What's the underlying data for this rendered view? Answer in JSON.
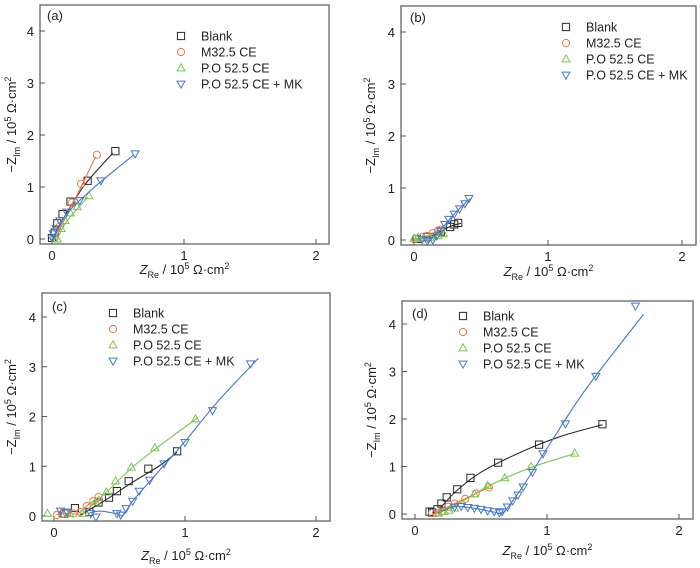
{
  "figure": {
    "y_axis_label": {
      "prefix": "−Z",
      "sub": "Im",
      "mid": " / 10",
      "sup": "5",
      "unit": " Ω·cm",
      "unit_sup": "2"
    },
    "x_axis_label": {
      "prefix": "Z",
      "sub": "Re",
      "mid": " / 10",
      "sup": "5",
      "unit": " Ω·cm",
      "unit_sup": "2"
    }
  },
  "chart_data": [
    {
      "type": "scatter",
      "panel": "(a)",
      "xlabel": "Z_Re / 10^5 Ω·cm^2",
      "ylabel": "-Z_Im / 10^5 Ω·cm^2",
      "xlim": [
        -0.05,
        2.05
      ],
      "ylim": [
        -0.05,
        4.4
      ],
      "xticks": [
        "0",
        "1",
        "2"
      ],
      "yticks": [
        "0",
        "1",
        "2",
        "3",
        "4"
      ],
      "legend_position": "top-right",
      "series": [
        {
          "name": "Blank",
          "marker": "square",
          "color": "#2b2b2b",
          "points": [
            [
              0.0,
              0.02
            ],
            [
              0.02,
              0.12
            ],
            [
              0.04,
              0.3
            ],
            [
              0.08,
              0.48
            ],
            [
              0.14,
              0.72
            ],
            [
              0.27,
              1.12
            ],
            [
              0.48,
              1.69
            ]
          ],
          "fit": [
            [
              0.0,
              -0.05
            ],
            [
              0.1,
              0.45
            ],
            [
              0.25,
              1.05
            ],
            [
              0.46,
              1.65
            ]
          ]
        },
        {
          "name": "M32.5 CE",
          "marker": "circle",
          "color": "#e8794f",
          "points": [
            [
              0.02,
              0.02
            ],
            [
              0.06,
              0.25
            ],
            [
              0.15,
              0.7
            ],
            [
              0.22,
              1.06
            ],
            [
              0.34,
              1.62
            ]
          ],
          "fit": [
            [
              0.02,
              -0.02
            ],
            [
              0.1,
              0.4
            ],
            [
              0.22,
              1.0
            ],
            [
              0.33,
              1.58
            ]
          ]
        },
        {
          "name": "P.O 52.5 CE",
          "marker": "triangle-up",
          "color": "#7ec35a",
          "points": [
            [
              0.04,
              0.0
            ],
            [
              0.07,
              0.2
            ],
            [
              0.1,
              0.35
            ],
            [
              0.14,
              0.5
            ],
            [
              0.19,
              0.62
            ],
            [
              0.28,
              0.83
            ]
          ],
          "fit": [
            [
              0.03,
              -0.05
            ],
            [
              0.1,
              0.3
            ],
            [
              0.2,
              0.6
            ],
            [
              0.27,
              0.8
            ]
          ]
        },
        {
          "name": "P.O 52.5 CE + MK",
          "marker": "triangle-down",
          "color": "#4a78c2",
          "points": [
            [
              0.0,
              0.02
            ],
            [
              0.01,
              0.1
            ],
            [
              0.03,
              0.2
            ],
            [
              0.06,
              0.35
            ],
            [
              0.11,
              0.52
            ],
            [
              0.21,
              0.74
            ],
            [
              0.37,
              1.12
            ],
            [
              0.63,
              1.64
            ]
          ],
          "fit": [
            [
              0.0,
              -0.02
            ],
            [
              0.1,
              0.45
            ],
            [
              0.3,
              0.95
            ],
            [
              0.62,
              1.62
            ]
          ]
        }
      ]
    },
    {
      "type": "scatter",
      "panel": "(b)",
      "xlabel": "Z_Re / 10^5 Ω·cm^2",
      "ylabel": "-Z_Im / 10^5 Ω·cm^2",
      "xlim": [
        -0.05,
        2.05
      ],
      "ylim": [
        -0.1,
        4.4
      ],
      "xticks": [
        "0",
        "1",
        "2"
      ],
      "yticks": [
        "0",
        "1",
        "2",
        "3",
        "4"
      ],
      "legend_position": "top-right",
      "series": [
        {
          "name": "Blank",
          "marker": "square",
          "color": "#2b2b2b",
          "points": [
            [
              0.02,
              0.02
            ],
            [
              0.1,
              0.06
            ],
            [
              0.2,
              0.16
            ],
            [
              0.27,
              0.25
            ],
            [
              0.3,
              0.3
            ],
            [
              0.33,
              0.33
            ]
          ],
          "fit": [
            [
              0.02,
              0.0
            ],
            [
              0.15,
              0.1
            ],
            [
              0.27,
              0.26
            ],
            [
              0.35,
              0.32
            ]
          ]
        },
        {
          "name": "M32.5 CE",
          "marker": "circle",
          "color": "#e8794f",
          "points": [
            [
              0.01,
              0.02
            ],
            [
              0.06,
              0.05
            ],
            [
              0.1,
              0.08
            ],
            [
              0.14,
              0.13
            ],
            [
              0.18,
              0.18
            ],
            [
              0.2,
              0.2
            ]
          ],
          "fit": [
            [
              0.01,
              0.0
            ],
            [
              0.1,
              0.08
            ],
            [
              0.2,
              0.2
            ]
          ]
        },
        {
          "name": "P.O 52.5 CE",
          "marker": "triangle-up",
          "color": "#7ec35a",
          "points": [
            [
              0.0,
              0.03
            ],
            [
              0.03,
              0.05
            ],
            [
              0.07,
              0.03
            ],
            [
              0.12,
              0.05
            ],
            [
              0.18,
              0.08
            ],
            [
              0.22,
              0.12
            ]
          ],
          "fit": [
            [
              0.0,
              0.03
            ],
            [
              0.1,
              0.03
            ],
            [
              0.22,
              0.12
            ]
          ]
        },
        {
          "name": "P.O 52.5 CE + MK",
          "marker": "triangle-down",
          "color": "#4a78c2",
          "points": [
            [
              0.06,
              0.01
            ],
            [
              0.1,
              -0.02
            ],
            [
              0.14,
              0.0
            ],
            [
              0.17,
              0.08
            ],
            [
              0.2,
              0.18
            ],
            [
              0.23,
              0.3
            ],
            [
              0.26,
              0.4
            ],
            [
              0.3,
              0.5
            ],
            [
              0.34,
              0.6
            ],
            [
              0.38,
              0.7
            ],
            [
              0.41,
              0.8
            ]
          ],
          "fit": [
            [
              0.1,
              -0.05
            ],
            [
              0.2,
              0.2
            ],
            [
              0.3,
              0.5
            ],
            [
              0.42,
              0.8
            ]
          ]
        }
      ]
    },
    {
      "type": "scatter",
      "panel": "(c)",
      "xlabel": "Z_Re / 10^5 Ω·cm^2",
      "ylabel": "-Z_Im / 10^5 Ω·cm^2",
      "xlim": [
        -0.1,
        2.1
      ],
      "ylim": [
        -0.1,
        4.4
      ],
      "xticks": [
        "0",
        "1",
        "2"
      ],
      "yticks": [
        "0",
        "1",
        "2",
        "3",
        "4"
      ],
      "legend_position": "top-left",
      "series": [
        {
          "name": "Blank",
          "marker": "square",
          "color": "#2b2b2b",
          "points": [
            [
              0.08,
              0.05
            ],
            [
              0.16,
              0.16
            ],
            [
              0.27,
              0.08
            ],
            [
              0.34,
              0.27
            ],
            [
              0.42,
              0.37
            ],
            [
              0.48,
              0.5
            ],
            [
              0.57,
              0.7
            ],
            [
              0.72,
              0.95
            ],
            [
              0.94,
              1.3
            ]
          ],
          "fit": [
            [
              0.2,
              0.02
            ],
            [
              0.4,
              0.33
            ],
            [
              0.6,
              0.68
            ],
            [
              0.8,
              1.0
            ],
            [
              0.94,
              1.28
            ]
          ]
        },
        {
          "name": "M32.5 CE",
          "marker": "circle",
          "color": "#e8794f",
          "points": [
            [
              0.02,
              0.02
            ],
            [
              0.06,
              0.04
            ],
            [
              0.1,
              0.06
            ],
            [
              0.15,
              0.05
            ],
            [
              0.2,
              0.08
            ],
            [
              0.25,
              0.2
            ],
            [
              0.3,
              0.3
            ],
            [
              0.34,
              0.38
            ]
          ],
          "fit": [
            [
              0.02,
              0.03
            ],
            [
              0.1,
              0.05
            ],
            [
              0.18,
              0.05
            ],
            [
              0.25,
              0.2
            ],
            [
              0.35,
              0.4
            ]
          ]
        },
        {
          "name": "P.O 52.5 CE",
          "marker": "triangle-up",
          "color": "#7ec35a",
          "points": [
            [
              -0.05,
              0.05
            ],
            [
              0.12,
              0.05
            ],
            [
              0.22,
              0.05
            ],
            [
              0.32,
              0.28
            ],
            [
              0.4,
              0.48
            ],
            [
              0.47,
              0.7
            ],
            [
              0.59,
              0.98
            ],
            [
              0.77,
              1.37
            ],
            [
              1.08,
              1.95
            ]
          ],
          "fit": [
            [
              0.25,
              0.12
            ],
            [
              0.4,
              0.48
            ],
            [
              0.6,
              0.98
            ],
            [
              0.8,
              1.4
            ],
            [
              1.1,
              1.98
            ]
          ]
        },
        {
          "name": "P.O 52.5 CE + MK",
          "marker": "triangle-down",
          "color": "#4a78c2",
          "points": [
            [
              0.05,
              0.1
            ],
            [
              0.1,
              0.08
            ],
            [
              0.28,
              0.05
            ],
            [
              0.32,
              -0.02
            ],
            [
              0.48,
              0.05
            ],
            [
              0.51,
              0.02
            ],
            [
              0.55,
              0.15
            ],
            [
              0.6,
              0.3
            ],
            [
              0.65,
              0.5
            ],
            [
              0.73,
              0.72
            ],
            [
              0.84,
              1.05
            ],
            [
              1.0,
              1.48
            ],
            [
              1.21,
              2.12
            ],
            [
              1.5,
              3.06
            ]
          ],
          "fit": [
            [
              0.26,
              0.05
            ],
            [
              0.35,
              0.1
            ],
            [
              0.47,
              0.05
            ],
            [
              0.53,
              0.02
            ],
            [
              0.6,
              0.3
            ],
            [
              0.8,
              0.9
            ],
            [
              1.0,
              1.5
            ],
            [
              1.25,
              2.3
            ],
            [
              1.56,
              3.17
            ]
          ]
        }
      ]
    },
    {
      "type": "scatter",
      "panel": "(d)",
      "xlabel": "Z_Re / 10^5 Ω·cm^2",
      "ylabel": "-Z_Im / 10^5 Ω·cm^2",
      "xlim": [
        -0.1,
        2.05
      ],
      "ylim": [
        -0.1,
        4.5
      ],
      "xticks": [
        "0",
        "1",
        "2"
      ],
      "yticks": [
        "0",
        "1",
        "2",
        "3",
        "4"
      ],
      "legend_position": "top-left",
      "series": [
        {
          "name": "Blank",
          "marker": "square",
          "color": "#2b2b2b",
          "points": [
            [
              0.11,
              0.05
            ],
            [
              0.13,
              0.03
            ],
            [
              0.17,
              0.1
            ],
            [
              0.2,
              0.22
            ],
            [
              0.24,
              0.35
            ],
            [
              0.32,
              0.52
            ],
            [
              0.42,
              0.76
            ],
            [
              0.63,
              1.08
            ],
            [
              0.94,
              1.46
            ],
            [
              1.42,
              1.89
            ]
          ],
          "fit": [
            [
              0.17,
              0.05
            ],
            [
              0.3,
              0.45
            ],
            [
              0.5,
              0.88
            ],
            [
              0.8,
              1.3
            ],
            [
              1.1,
              1.63
            ],
            [
              1.42,
              1.88
            ]
          ]
        },
        {
          "name": "M32.5 CE",
          "marker": "circle",
          "color": "#e8794f",
          "points": [
            [
              0.13,
              0.02
            ],
            [
              0.16,
              0.02
            ],
            [
              0.2,
              0.05
            ],
            [
              0.25,
              0.15
            ],
            [
              0.3,
              0.22
            ],
            [
              0.38,
              0.32
            ],
            [
              0.46,
              0.43
            ],
            [
              0.56,
              0.56
            ]
          ],
          "fit": [
            [
              0.14,
              0.0
            ],
            [
              0.25,
              0.15
            ],
            [
              0.4,
              0.35
            ],
            [
              0.56,
              0.56
            ]
          ]
        },
        {
          "name": "P.O 52.5 CE",
          "marker": "triangle-up",
          "color": "#7ec35a",
          "points": [
            [
              0.18,
              0.02
            ],
            [
              0.22,
              0.05
            ],
            [
              0.26,
              0.08
            ],
            [
              0.3,
              0.12
            ],
            [
              0.45,
              0.42
            ],
            [
              0.55,
              0.6
            ],
            [
              0.68,
              0.76
            ],
            [
              0.88,
              1.0
            ],
            [
              1.21,
              1.28
            ]
          ],
          "fit": [
            [
              0.2,
              0.05
            ],
            [
              0.35,
              0.25
            ],
            [
              0.55,
              0.58
            ],
            [
              0.88,
              0.98
            ],
            [
              1.21,
              1.27
            ]
          ]
        },
        {
          "name": "P.O 52.5 CE + MK",
          "marker": "triangle-down",
          "color": "#4a78c2",
          "points": [
            [
              0.3,
              0.15
            ],
            [
              0.35,
              0.16
            ],
            [
              0.4,
              0.14
            ],
            [
              0.45,
              0.12
            ],
            [
              0.5,
              0.1
            ],
            [
              0.55,
              0.07
            ],
            [
              0.6,
              0.05
            ],
            [
              0.64,
              0.03
            ],
            [
              0.66,
              0.05
            ],
            [
              0.7,
              0.15
            ],
            [
              0.74,
              0.28
            ],
            [
              0.78,
              0.4
            ],
            [
              0.82,
              0.57
            ],
            [
              0.89,
              0.88
            ],
            [
              0.97,
              1.27
            ],
            [
              1.14,
              1.9
            ],
            [
              1.37,
              2.9
            ],
            [
              1.67,
              4.38
            ]
          ],
          "fit": [
            [
              0.2,
              0.05
            ],
            [
              0.3,
              0.16
            ],
            [
              0.45,
              0.12
            ],
            [
              0.6,
              0.04
            ],
            [
              0.66,
              0.02
            ],
            [
              0.72,
              0.2
            ],
            [
              0.85,
              0.72
            ],
            [
              1.05,
              1.6
            ],
            [
              1.3,
              2.65
            ],
            [
              1.73,
              4.2
            ]
          ]
        }
      ]
    }
  ]
}
